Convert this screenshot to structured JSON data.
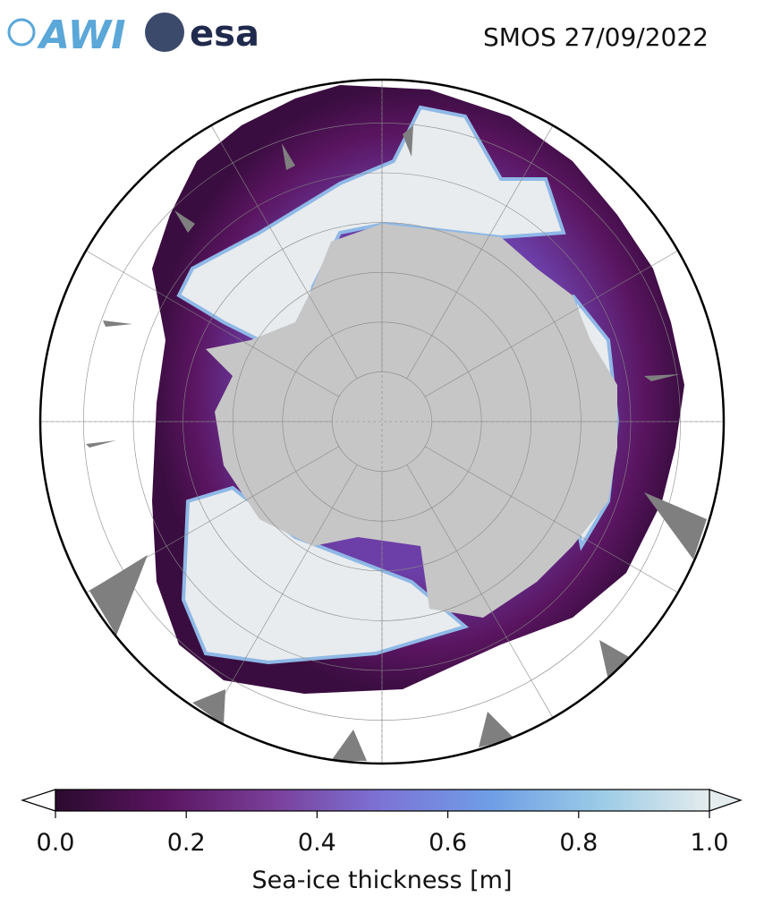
{
  "header": {
    "logo_left": "AWI",
    "logo_right": "esa",
    "title": "SMOS 27/09/2022"
  },
  "colorbar": {
    "label": "Sea-ice thickness [m]",
    "lim": [
      0,
      1
    ],
    "ticks": [
      {
        "value": 0,
        "label": "0.0"
      },
      {
        "value": 0.2,
        "label": "0.2"
      },
      {
        "value": 0.4,
        "label": "0.4"
      },
      {
        "value": 0.6,
        "label": "0.6"
      },
      {
        "value": 0.8,
        "label": "0.8"
      },
      {
        "value": 1,
        "label": "1.0"
      }
    ],
    "colors": [
      "#2b0a2f",
      "#5a1560",
      "#7a3f9a",
      "#7c74d6",
      "#6f9ee6",
      "#9bcbe6",
      "#e4eced"
    ]
  }
}
